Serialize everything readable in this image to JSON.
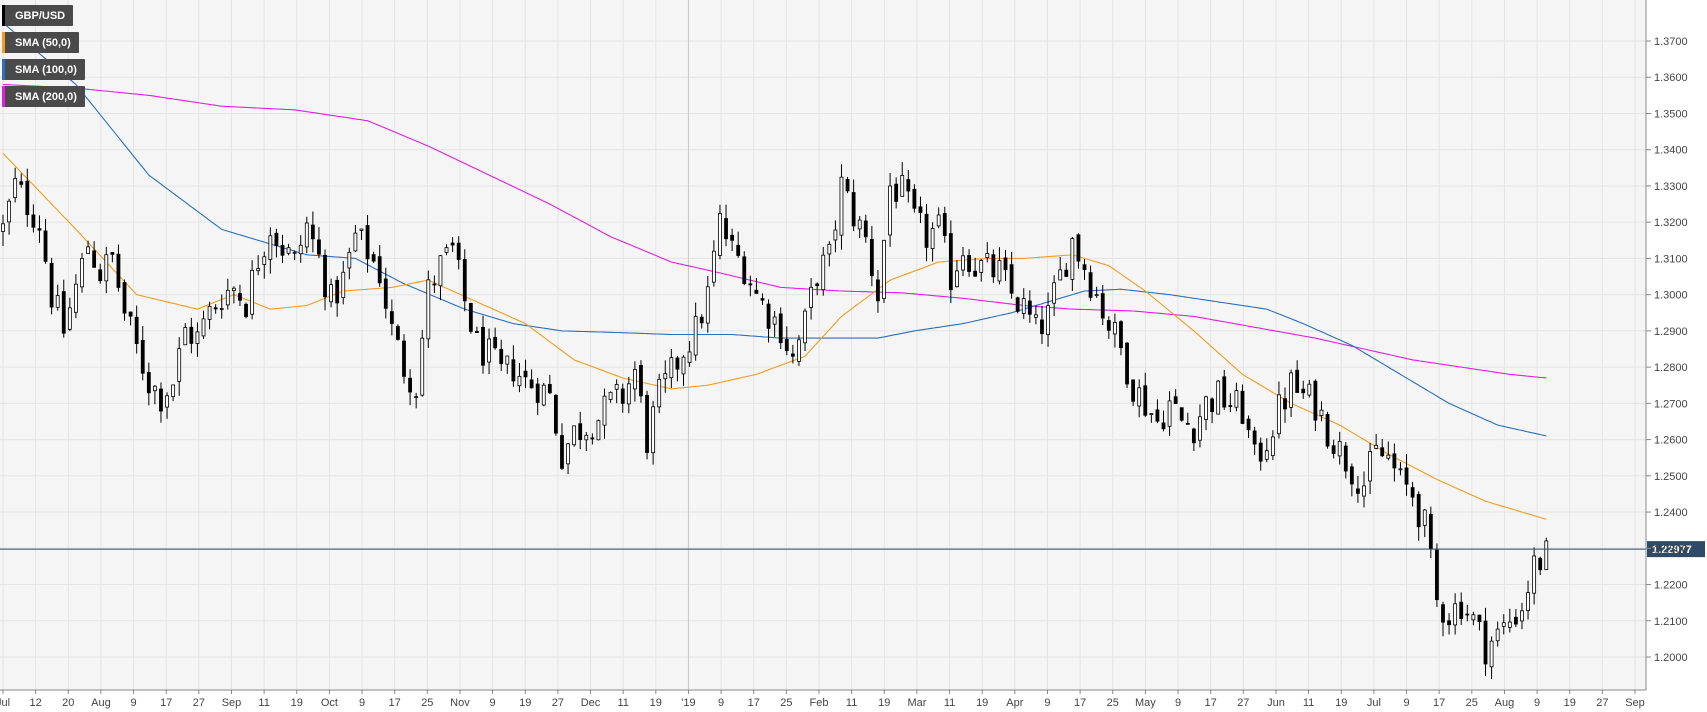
{
  "chart_data": {
    "type": "candlestick",
    "symbol": "GBP/USD",
    "timeframe": "daily",
    "legend": [
      {
        "label": "GBP/USD",
        "color": "#000000"
      },
      {
        "label": "SMA (50,0)",
        "color": "#f39c1f"
      },
      {
        "label": "SMA (100,0)",
        "color": "#2c6fbd"
      },
      {
        "label": "SMA (200,0)",
        "color": "#e020e0"
      }
    ],
    "ylim": [
      1.185,
      1.385
    ],
    "y_ticks": [
      "1.2000",
      "1.2100",
      "1.2200",
      "1.2300",
      "1.2400",
      "1.2500",
      "1.2600",
      "1.2700",
      "1.2800",
      "1.2900",
      "1.3000",
      "1.3100",
      "1.3200",
      "1.3300",
      "1.3400",
      "1.3500",
      "1.3600",
      "1.3700"
    ],
    "x_tick_labels": [
      "Jul",
      "12",
      "20",
      "Aug",
      "9",
      "17",
      "27",
      "Sep",
      "11",
      "19",
      "Oct",
      "9",
      "17",
      "25",
      "Nov",
      "9",
      "19",
      "27",
      "Dec",
      "11",
      "19",
      "'19",
      "9",
      "17",
      "25",
      "Feb",
      "11",
      "19",
      "Mar",
      "11",
      "19",
      "Apr",
      "9",
      "17",
      "25",
      "May",
      "9",
      "17",
      "27",
      "Jun",
      "11",
      "19",
      "Jul",
      "9",
      "17",
      "25",
      "Aug",
      "9",
      "19",
      "27",
      "Sep"
    ],
    "year_marker": "'19",
    "current_price": 1.22977,
    "current_price_label": "1.22977",
    "colors": {
      "up": "#ffffff",
      "down": "#000000",
      "wick": "#000000",
      "sma50": "#f39c1f",
      "sma100": "#2c6fbd",
      "sma200": "#e020e0",
      "price_line": "#2e4a66",
      "price_tag_bg": "#2e4a66",
      "grid": "#e4e4e4",
      "plot_bg": "#f5f5f5"
    },
    "close_path": [
      [
        0,
        1.318
      ],
      [
        5,
        1.33
      ],
      [
        10,
        1.325
      ],
      [
        15,
        1.32
      ],
      [
        20,
        1.3
      ],
      [
        25,
        1.29
      ],
      [
        30,
        1.302
      ],
      [
        35,
        1.314
      ],
      [
        40,
        1.306
      ],
      [
        45,
        1.31
      ],
      [
        50,
        1.295
      ],
      [
        55,
        1.285
      ],
      [
        60,
        1.276
      ],
      [
        65,
        1.272
      ],
      [
        70,
        1.276
      ],
      [
        75,
        1.29
      ],
      [
        80,
        1.288
      ],
      [
        85,
        1.295
      ],
      [
        90,
        1.3
      ],
      [
        95,
        1.302
      ],
      [
        100,
        1.298
      ],
      [
        105,
        1.31
      ],
      [
        110,
        1.319
      ],
      [
        115,
        1.313
      ],
      [
        120,
        1.309
      ],
      [
        125,
        1.319
      ],
      [
        130,
        1.31
      ],
      [
        135,
        1.298
      ],
      [
        140,
        1.304
      ],
      [
        145,
        1.316
      ],
      [
        150,
        1.312
      ],
      [
        155,
        1.306
      ],
      [
        160,
        1.29
      ],
      [
        165,
        1.28
      ],
      [
        170,
        1.275
      ],
      [
        175,
        1.301
      ],
      [
        180,
        1.308
      ],
      [
        185,
        1.312
      ],
      [
        190,
        1.298
      ],
      [
        195,
        1.286
      ],
      [
        200,
        1.283
      ],
      [
        205,
        1.278
      ],
      [
        210,
        1.28
      ],
      [
        215,
        1.276
      ],
      [
        220,
        1.275
      ],
      [
        225,
        1.272
      ],
      [
        230,
        1.256
      ],
      [
        235,
        1.262
      ],
      [
        240,
        1.264
      ],
      [
        245,
        1.266
      ],
      [
        250,
        1.27
      ],
      [
        255,
        1.272
      ],
      [
        260,
        1.279
      ],
      [
        265,
        1.26
      ],
      [
        270,
        1.272
      ],
      [
        275,
        1.278
      ],
      [
        280,
        1.285
      ],
      [
        285,
        1.29
      ],
      [
        290,
        1.3
      ],
      [
        295,
        1.32
      ],
      [
        300,
        1.312
      ],
      [
        305,
        1.308
      ],
      [
        310,
        1.3
      ],
      [
        315,
        1.295
      ],
      [
        320,
        1.291
      ],
      [
        325,
        1.282
      ],
      [
        330,
        1.292
      ],
      [
        335,
        1.306
      ],
      [
        340,
        1.31
      ],
      [
        345,
        1.33
      ],
      [
        350,
        1.322
      ],
      [
        355,
        1.315
      ],
      [
        360,
        1.3
      ],
      [
        365,
        1.33
      ],
      [
        370,
        1.328
      ],
      [
        375,
        1.32
      ],
      [
        380,
        1.316
      ],
      [
        385,
        1.318
      ],
      [
        390,
        1.305
      ],
      [
        395,
        1.313
      ],
      [
        400,
        1.308
      ],
      [
        405,
        1.307
      ],
      [
        410,
        1.306
      ],
      [
        415,
        1.3
      ],
      [
        420,
        1.296
      ],
      [
        425,
        1.29
      ],
      [
        430,
        1.294
      ],
      [
        435,
        1.305
      ],
      [
        440,
        1.315
      ],
      [
        445,
        1.308
      ],
      [
        450,
        1.3
      ],
      [
        455,
        1.292
      ],
      [
        460,
        1.285
      ],
      [
        465,
        1.275
      ],
      [
        470,
        1.27
      ],
      [
        475,
        1.265
      ],
      [
        480,
        1.27
      ],
      [
        485,
        1.265
      ],
      [
        490,
        1.264
      ],
      [
        495,
        1.27
      ],
      [
        500,
        1.272
      ],
      [
        505,
        1.27
      ],
      [
        510,
        1.268
      ],
      [
        515,
        1.254
      ],
      [
        520,
        1.26
      ],
      [
        525,
        1.268
      ],
      [
        530,
        1.275
      ],
      [
        535,
        1.272
      ],
      [
        540,
        1.27
      ],
      [
        545,
        1.263
      ],
      [
        550,
        1.257
      ],
      [
        555,
        1.252
      ],
      [
        560,
        1.248
      ],
      [
        565,
        1.256
      ],
      [
        570,
        1.255
      ],
      [
        575,
        1.248
      ],
      [
        580,
        1.245
      ],
      [
        585,
        1.236
      ],
      [
        590,
        1.215
      ],
      [
        595,
        1.212
      ],
      [
        600,
        1.215
      ],
      [
        605,
        1.21
      ],
      [
        610,
        1.203
      ],
      [
        615,
        1.206
      ],
      [
        620,
        1.21
      ],
      [
        625,
        1.214
      ],
      [
        630,
        1.225
      ],
      [
        635,
        1.228
      ]
    ],
    "sma50_path": [
      [
        0,
        1.339
      ],
      [
        30,
        1.318
      ],
      [
        55,
        1.3
      ],
      [
        80,
        1.296
      ],
      [
        95,
        1.3
      ],
      [
        110,
        1.296
      ],
      [
        125,
        1.297
      ],
      [
        140,
        1.301
      ],
      [
        160,
        1.302
      ],
      [
        175,
        1.304
      ],
      [
        195,
        1.298
      ],
      [
        215,
        1.292
      ],
      [
        235,
        1.282
      ],
      [
        255,
        1.277
      ],
      [
        275,
        1.274
      ],
      [
        290,
        1.275
      ],
      [
        310,
        1.278
      ],
      [
        330,
        1.283
      ],
      [
        345,
        1.294
      ],
      [
        365,
        1.304
      ],
      [
        385,
        1.309
      ],
      [
        405,
        1.31
      ],
      [
        420,
        1.31
      ],
      [
        440,
        1.311
      ],
      [
        455,
        1.308
      ],
      [
        470,
        1.301
      ],
      [
        490,
        1.29
      ],
      [
        510,
        1.278
      ],
      [
        530,
        1.27
      ],
      [
        550,
        1.264
      ],
      [
        570,
        1.256
      ],
      [
        590,
        1.249
      ],
      [
        610,
        1.243
      ],
      [
        635,
        1.238
      ]
    ],
    "sma100_path": [
      [
        0,
        1.375
      ],
      [
        30,
        1.358
      ],
      [
        60,
        1.333
      ],
      [
        90,
        1.318
      ],
      [
        105,
        1.315
      ],
      [
        125,
        1.311
      ],
      [
        145,
        1.31
      ],
      [
        165,
        1.303
      ],
      [
        190,
        1.296
      ],
      [
        210,
        1.292
      ],
      [
        230,
        1.29
      ],
      [
        255,
        1.2895
      ],
      [
        275,
        1.289
      ],
      [
        300,
        1.289
      ],
      [
        320,
        1.288
      ],
      [
        340,
        1.288
      ],
      [
        360,
        1.288
      ],
      [
        375,
        1.29
      ],
      [
        395,
        1.292
      ],
      [
        415,
        1.295
      ],
      [
        430,
        1.298
      ],
      [
        445,
        1.301
      ],
      [
        460,
        1.3015
      ],
      [
        480,
        1.3
      ],
      [
        500,
        1.298
      ],
      [
        520,
        1.296
      ],
      [
        535,
        1.292
      ],
      [
        555,
        1.286
      ],
      [
        575,
        1.278
      ],
      [
        595,
        1.27
      ],
      [
        615,
        1.264
      ],
      [
        635,
        1.261
      ]
    ],
    "sma200_path": [
      [
        0,
        1.358
      ],
      [
        30,
        1.357
      ],
      [
        60,
        1.355
      ],
      [
        90,
        1.352
      ],
      [
        120,
        1.351
      ],
      [
        150,
        1.348
      ],
      [
        175,
        1.341
      ],
      [
        200,
        1.333
      ],
      [
        225,
        1.325
      ],
      [
        250,
        1.316
      ],
      [
        275,
        1.309
      ],
      [
        295,
        1.306
      ],
      [
        320,
        1.302
      ],
      [
        345,
        1.301
      ],
      [
        370,
        1.3005
      ],
      [
        395,
        1.299
      ],
      [
        420,
        1.297
      ],
      [
        440,
        1.296
      ],
      [
        465,
        1.2955
      ],
      [
        490,
        1.294
      ],
      [
        515,
        1.291
      ],
      [
        540,
        1.288
      ],
      [
        560,
        1.285
      ],
      [
        580,
        1.282
      ],
      [
        600,
        1.28
      ],
      [
        620,
        1.278
      ],
      [
        635,
        1.277
      ]
    ]
  }
}
